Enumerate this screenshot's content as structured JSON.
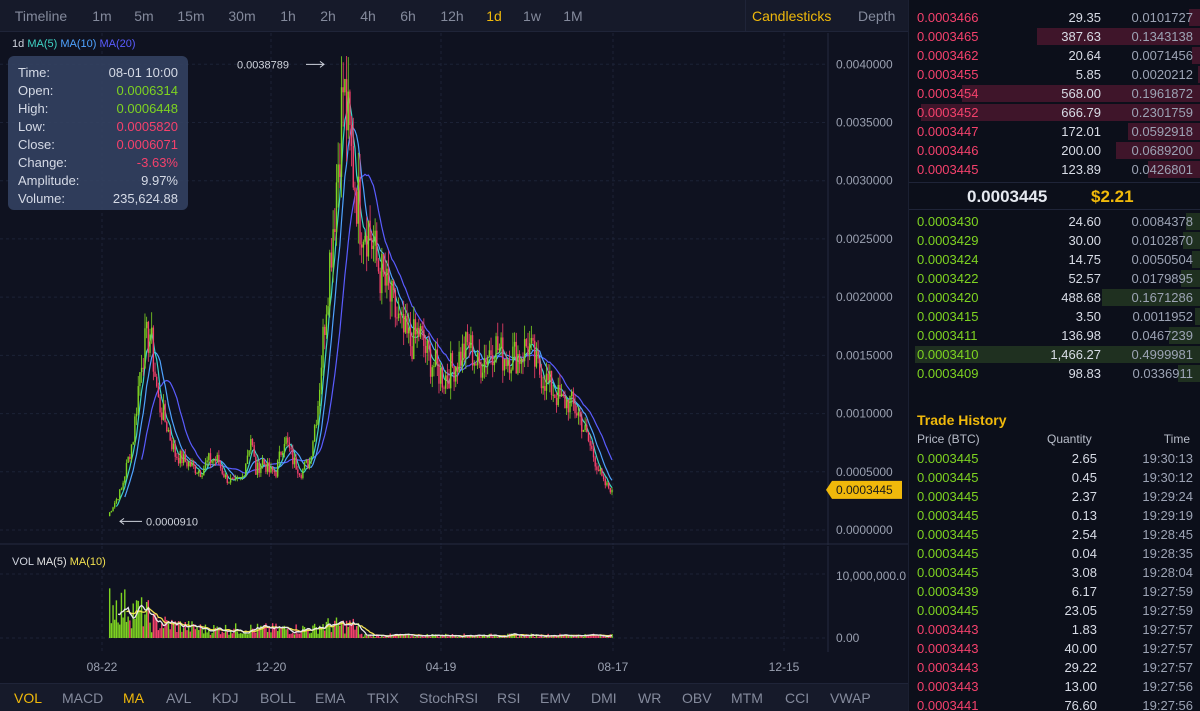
{
  "intervals": [
    "Timeline",
    "1m",
    "5m",
    "15m",
    "30m",
    "1h",
    "2h",
    "4h",
    "6h",
    "12h",
    "1d",
    "1w",
    "1M"
  ],
  "active_interval": "1d",
  "views": [
    "Candlesticks",
    "Depth"
  ],
  "active_view": "Candlesticks",
  "main_indicator": {
    "prefix": "1d",
    "ma5": "MA(5)",
    "ma10": "MA(10)",
    "ma20": "MA(20)"
  },
  "ohlc": {
    "time_label": "Time:",
    "time": "08-01 10:00",
    "open_label": "Open:",
    "open": "0.0006314",
    "high_label": "High:",
    "high": "0.0006448",
    "low_label": "Low:",
    "low": "0.0005820",
    "close_label": "Close:",
    "close": "0.0006071",
    "change_label": "Change:",
    "change": "-3.63%",
    "amplitude_label": "Amplitude:",
    "amplitude": "9.97%",
    "volume_label": "Volume:",
    "volume": "235,624.88"
  },
  "vol_indicator": {
    "label": "VOL",
    "ma5": "MA(5)",
    "ma10": "MA(10)"
  },
  "price_annotations": {
    "max": "0.0038789",
    "min": "0.0000910",
    "current": "0.0003445"
  },
  "chart_data": {
    "type": "candlestick",
    "price_axis_ticks": [
      "0.0040000",
      "0.0035000",
      "0.0030000",
      "0.0025000",
      "0.0020000",
      "0.0015000",
      "0.0010000",
      "0.0005000",
      "0.0000000"
    ],
    "volume_axis_ticks": [
      "10,000,000.0",
      "0.00"
    ],
    "x_ticks": [
      "08-22",
      "12-20",
      "04-19",
      "08-17",
      "12-15"
    ],
    "ylim": [
      0,
      0.0042
    ],
    "approx_close_path": [
      [
        0,
        0.00012
      ],
      [
        8,
        0.00035
      ],
      [
        15,
        0.0008
      ],
      [
        20,
        0.0015
      ],
      [
        25,
        0.0017
      ],
      [
        30,
        0.0011
      ],
      [
        35,
        0.0009
      ],
      [
        40,
        0.00065
      ],
      [
        45,
        0.0006
      ],
      [
        50,
        0.00055
      ],
      [
        55,
        0.0005
      ],
      [
        60,
        0.0006
      ],
      [
        65,
        0.0006
      ],
      [
        70,
        0.00045
      ],
      [
        75,
        0.0004
      ],
      [
        80,
        0.00045
      ],
      [
        85,
        0.0008
      ],
      [
        88,
        0.0005
      ],
      [
        92,
        0.0006
      ],
      [
        96,
        0.0005
      ],
      [
        100,
        0.0005
      ],
      [
        105,
        0.0008
      ],
      [
        110,
        0.0006
      ],
      [
        115,
        0.0005
      ],
      [
        120,
        0.0006
      ],
      [
        125,
        0.0011
      ],
      [
        130,
        0.002
      ],
      [
        135,
        0.0028
      ],
      [
        140,
        0.0038
      ],
      [
        145,
        0.0032
      ],
      [
        150,
        0.0027
      ],
      [
        155,
        0.0026
      ],
      [
        160,
        0.0023
      ],
      [
        165,
        0.0021
      ],
      [
        170,
        0.0019
      ],
      [
        175,
        0.0017
      ],
      [
        180,
        0.0016
      ],
      [
        185,
        0.0017
      ],
      [
        190,
        0.0015
      ],
      [
        195,
        0.0014
      ],
      [
        200,
        0.0013
      ],
      [
        205,
        0.0014
      ],
      [
        210,
        0.0015
      ],
      [
        215,
        0.0016
      ],
      [
        220,
        0.0014
      ],
      [
        225,
        0.0015
      ],
      [
        230,
        0.0016
      ],
      [
        235,
        0.0015
      ],
      [
        240,
        0.0015
      ],
      [
        245,
        0.0015
      ],
      [
        250,
        0.0016
      ],
      [
        255,
        0.0014
      ],
      [
        260,
        0.0013
      ],
      [
        265,
        0.0012
      ],
      [
        270,
        0.0011
      ],
      [
        275,
        0.0011
      ],
      [
        280,
        0.001
      ],
      [
        285,
        0.0008
      ],
      [
        290,
        0.0006
      ],
      [
        295,
        0.0004
      ],
      [
        300,
        0.0003445
      ]
    ]
  },
  "indicators": [
    "VOL",
    "MACD",
    "MA",
    "AVL",
    "KDJ",
    "BOLL",
    "EMA",
    "TRIX",
    "StochRSI",
    "RSI",
    "EMV",
    "DMI",
    "WR",
    "OBV",
    "MTM",
    "CCI",
    "VWAP"
  ],
  "active_indicators": [
    "VOL",
    "MA"
  ],
  "orderbook": {
    "asks": [
      {
        "price": "0.0003466",
        "qty": "29.35",
        "total": "0.0101727",
        "depth": 0.04
      },
      {
        "price": "0.0003465",
        "qty": "387.63",
        "total": "0.1343138",
        "depth": 0.56
      },
      {
        "price": "0.0003462",
        "qty": "20.64",
        "total": "0.0071456",
        "depth": 0.03
      },
      {
        "price": "0.0003455",
        "qty": "5.85",
        "total": "0.0020212",
        "depth": 0.01
      },
      {
        "price": "0.0003454",
        "qty": "568.00",
        "total": "0.1961872",
        "depth": 0.82
      },
      {
        "price": "0.0003452",
        "qty": "666.79",
        "total": "0.2301759",
        "depth": 0.96
      },
      {
        "price": "0.0003447",
        "qty": "172.01",
        "total": "0.0592918",
        "depth": 0.25
      },
      {
        "price": "0.0003446",
        "qty": "200.00",
        "total": "0.0689200",
        "depth": 0.29
      },
      {
        "price": "0.0003445",
        "qty": "123.89",
        "total": "0.0426801",
        "depth": 0.18
      }
    ],
    "last_price": "0.0003445",
    "last_price_usd": "$2.21",
    "bids": [
      {
        "price": "0.0003430",
        "qty": "24.60",
        "total": "0.0084378",
        "depth": 0.05
      },
      {
        "price": "0.0003429",
        "qty": "30.00",
        "total": "0.0102870",
        "depth": 0.06
      },
      {
        "price": "0.0003424",
        "qty": "14.75",
        "total": "0.0050504",
        "depth": 0.03
      },
      {
        "price": "0.0003422",
        "qty": "52.57",
        "total": "0.0179895",
        "depth": 0.07
      },
      {
        "price": "0.0003420",
        "qty": "488.68",
        "total": "0.1671286",
        "depth": 0.34
      },
      {
        "price": "0.0003415",
        "qty": "3.50",
        "total": "0.0011952",
        "depth": 0.02
      },
      {
        "price": "0.0003411",
        "qty": "136.98",
        "total": "0.0467239",
        "depth": 0.11
      },
      {
        "price": "0.0003410",
        "qty": "1,466.27",
        "total": "0.4999981",
        "depth": 0.98
      },
      {
        "price": "0.0003409",
        "qty": "98.83",
        "total": "0.0336911",
        "depth": 0.08
      }
    ]
  },
  "trade_history": {
    "title": "Trade History",
    "headers": {
      "price": "Price (BTC)",
      "qty": "Quantity",
      "time": "Time"
    },
    "rows": [
      {
        "price": "0.0003445",
        "qty": "2.65",
        "time": "19:30:13",
        "side": "buy"
      },
      {
        "price": "0.0003445",
        "qty": "0.45",
        "time": "19:30:12",
        "side": "buy"
      },
      {
        "price": "0.0003445",
        "qty": "2.37",
        "time": "19:29:24",
        "side": "buy"
      },
      {
        "price": "0.0003445",
        "qty": "0.13",
        "time": "19:29:19",
        "side": "buy"
      },
      {
        "price": "0.0003445",
        "qty": "2.54",
        "time": "19:28:45",
        "side": "buy"
      },
      {
        "price": "0.0003445",
        "qty": "0.04",
        "time": "19:28:35",
        "side": "buy"
      },
      {
        "price": "0.0003445",
        "qty": "3.08",
        "time": "19:28:04",
        "side": "buy"
      },
      {
        "price": "0.0003439",
        "qty": "6.17",
        "time": "19:27:59",
        "side": "buy"
      },
      {
        "price": "0.0003445",
        "qty": "23.05",
        "time": "19:27:59",
        "side": "buy"
      },
      {
        "price": "0.0003443",
        "qty": "1.83",
        "time": "19:27:57",
        "side": "sell"
      },
      {
        "price": "0.0003443",
        "qty": "40.00",
        "time": "19:27:57",
        "side": "sell"
      },
      {
        "price": "0.0003443",
        "qty": "29.22",
        "time": "19:27:57",
        "side": "sell"
      },
      {
        "price": "0.0003443",
        "qty": "13.00",
        "time": "19:27:56",
        "side": "sell"
      },
      {
        "price": "0.0003441",
        "qty": "76.60",
        "time": "19:27:56",
        "side": "sell"
      }
    ]
  },
  "colors": {
    "up": "#7ed321",
    "down": "#f5416c",
    "accent": "#f0b90b",
    "ma5": "#3fd3c5",
    "ma10": "#4fa3ff",
    "ma20": "#5a5cff"
  }
}
